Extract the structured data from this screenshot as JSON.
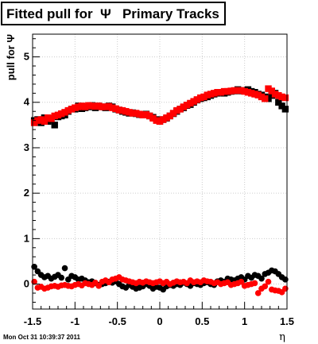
{
  "title": "Fitted pull for  Ψ   Primary Tracks",
  "timestamp": "Mon Oct 31 10:39:37 2011",
  "chart_data": {
    "type": "scatter",
    "title": "Fitted pull for  Ψ   Primary Tracks",
    "xlabel": "η",
    "ylabel": "pull for Ψ",
    "xlim": [
      -1.5,
      1.5
    ],
    "ylim": [
      -0.55,
      5.5
    ],
    "x_ticks": [
      "-1.5",
      "-1",
      "-0.5",
      "0",
      "0.5",
      "1",
      "1.5"
    ],
    "y_ticks": [
      "0",
      "1",
      "2",
      "3",
      "4",
      "5"
    ],
    "grid": true,
    "series": [
      {
        "color": "#000000",
        "marker": "square",
        "x": [
          -1.48,
          -1.44,
          -1.4,
          -1.36,
          -1.32,
          -1.28,
          -1.24,
          -1.2,
          -1.16,
          -1.12,
          -1.08,
          -1.04,
          -1.0,
          -0.96,
          -0.92,
          -0.88,
          -0.84,
          -0.8,
          -0.76,
          -0.72,
          -0.68,
          -0.64,
          -0.6,
          -0.56,
          -0.52,
          -0.48,
          -0.44,
          -0.4,
          -0.36,
          -0.32,
          -0.28,
          -0.24,
          -0.2,
          -0.16,
          -0.12,
          -0.08,
          -0.04,
          0.0,
          0.04,
          0.08,
          0.12,
          0.16,
          0.2,
          0.24,
          0.28,
          0.32,
          0.36,
          0.4,
          0.44,
          0.48,
          0.52,
          0.56,
          0.6,
          0.64,
          0.68,
          0.72,
          0.76,
          0.8,
          0.84,
          0.88,
          0.92,
          0.96,
          1.0,
          1.04,
          1.08,
          1.12,
          1.16,
          1.2,
          1.24,
          1.28,
          1.32,
          1.36,
          1.4,
          1.44,
          1.48
        ],
        "y": [
          3.6,
          3.62,
          3.55,
          3.66,
          3.58,
          3.62,
          3.5,
          3.68,
          3.7,
          3.72,
          3.8,
          3.85,
          3.85,
          3.92,
          3.86,
          3.88,
          3.9,
          3.93,
          3.88,
          3.92,
          3.9,
          3.88,
          3.92,
          3.9,
          3.85,
          3.83,
          3.8,
          3.78,
          3.76,
          3.77,
          3.75,
          3.73,
          3.72,
          3.74,
          3.7,
          3.67,
          3.62,
          3.58,
          3.62,
          3.65,
          3.7,
          3.75,
          3.8,
          3.85,
          3.88,
          3.93,
          3.95,
          4.0,
          4.05,
          4.08,
          4.1,
          4.12,
          4.15,
          4.18,
          4.2,
          4.22,
          4.2,
          4.22,
          4.24,
          4.25,
          4.28,
          4.25,
          4.26,
          4.28,
          4.24,
          4.22,
          4.18,
          4.16,
          4.12,
          4.08,
          4.15,
          4.2,
          4.0,
          3.92,
          3.85
        ]
      },
      {
        "color": "#ff0000",
        "marker": "square",
        "x": [
          -1.48,
          -1.44,
          -1.4,
          -1.36,
          -1.32,
          -1.28,
          -1.24,
          -1.2,
          -1.16,
          -1.12,
          -1.08,
          -1.04,
          -1.0,
          -0.96,
          -0.92,
          -0.88,
          -0.84,
          -0.8,
          -0.76,
          -0.72,
          -0.68,
          -0.64,
          -0.6,
          -0.56,
          -0.52,
          -0.48,
          -0.44,
          -0.4,
          -0.36,
          -0.32,
          -0.28,
          -0.24,
          -0.2,
          -0.16,
          -0.12,
          -0.08,
          -0.04,
          0.0,
          0.04,
          0.08,
          0.12,
          0.16,
          0.2,
          0.24,
          0.28,
          0.32,
          0.36,
          0.4,
          0.44,
          0.48,
          0.52,
          0.56,
          0.6,
          0.64,
          0.68,
          0.72,
          0.76,
          0.8,
          0.84,
          0.88,
          0.92,
          0.96,
          1.0,
          1.04,
          1.08,
          1.12,
          1.16,
          1.2,
          1.24,
          1.28,
          1.32,
          1.36,
          1.4,
          1.44,
          1.48
        ],
        "y": [
          3.55,
          3.6,
          3.62,
          3.58,
          3.66,
          3.64,
          3.7,
          3.72,
          3.75,
          3.78,
          3.82,
          3.85,
          3.88,
          3.9,
          3.92,
          3.9,
          3.93,
          3.92,
          3.91,
          3.92,
          3.9,
          3.9,
          3.91,
          3.88,
          3.86,
          3.83,
          3.82,
          3.8,
          3.78,
          3.76,
          3.76,
          3.74,
          3.72,
          3.73,
          3.7,
          3.65,
          3.6,
          3.58,
          3.62,
          3.66,
          3.7,
          3.76,
          3.82,
          3.85,
          3.9,
          3.94,
          3.98,
          4.02,
          4.06,
          4.1,
          4.12,
          4.16,
          4.18,
          4.2,
          4.22,
          4.22,
          4.24,
          4.24,
          4.25,
          4.26,
          4.26,
          4.26,
          4.24,
          4.22,
          4.2,
          4.18,
          4.16,
          4.12,
          4.08,
          4.3,
          4.25,
          4.18,
          4.15,
          4.12,
          4.1
        ]
      },
      {
        "color": "#000000",
        "marker": "circle",
        "x": [
          -1.48,
          -1.44,
          -1.4,
          -1.36,
          -1.32,
          -1.28,
          -1.24,
          -1.2,
          -1.16,
          -1.12,
          -1.08,
          -1.04,
          -1.0,
          -0.96,
          -0.92,
          -0.88,
          -0.84,
          -0.8,
          -0.76,
          -0.72,
          -0.68,
          -0.64,
          -0.6,
          -0.56,
          -0.52,
          -0.48,
          -0.44,
          -0.4,
          -0.36,
          -0.32,
          -0.28,
          -0.24,
          -0.2,
          -0.16,
          -0.12,
          -0.08,
          -0.04,
          0.0,
          0.04,
          0.08,
          0.12,
          0.16,
          0.2,
          0.24,
          0.28,
          0.32,
          0.36,
          0.4,
          0.44,
          0.48,
          0.52,
          0.56,
          0.6,
          0.64,
          0.68,
          0.72,
          0.76,
          0.8,
          0.84,
          0.88,
          0.92,
          0.96,
          1.0,
          1.04,
          1.08,
          1.12,
          1.16,
          1.2,
          1.24,
          1.28,
          1.32,
          1.36,
          1.4,
          1.44,
          1.48
        ],
        "y": [
          0.38,
          0.28,
          0.2,
          0.15,
          0.18,
          0.12,
          0.16,
          0.2,
          0.14,
          0.35,
          0.1,
          0.18,
          0.15,
          0.1,
          0.12,
          0.08,
          0.04,
          0.06,
          0.02,
          -0.02,
          0.0,
          0.02,
          0.05,
          0.03,
          0.06,
          0.0,
          -0.05,
          -0.08,
          -0.02,
          -0.06,
          -0.1,
          -0.08,
          -0.05,
          0.0,
          -0.04,
          -0.1,
          -0.06,
          -0.08,
          -0.12,
          -0.05,
          -0.02,
          -0.04,
          0.0,
          -0.02,
          0.03,
          0.0,
          -0.04,
          0.02,
          0.0,
          -0.02,
          0.02,
          0.04,
          0.0,
          -0.02,
          0.06,
          0.08,
          0.05,
          0.12,
          0.1,
          0.08,
          0.12,
          0.15,
          0.1,
          0.18,
          0.14,
          0.2,
          0.18,
          0.12,
          0.22,
          0.25,
          0.3,
          0.28,
          0.22,
          0.15,
          0.1
        ]
      },
      {
        "color": "#ff0000",
        "marker": "circle",
        "x": [
          -1.48,
          -1.44,
          -1.4,
          -1.36,
          -1.32,
          -1.28,
          -1.24,
          -1.2,
          -1.16,
          -1.12,
          -1.08,
          -1.04,
          -1.0,
          -0.96,
          -0.92,
          -0.88,
          -0.84,
          -0.8,
          -0.76,
          -0.72,
          -0.68,
          -0.64,
          -0.6,
          -0.56,
          -0.52,
          -0.48,
          -0.44,
          -0.4,
          -0.36,
          -0.32,
          -0.28,
          -0.24,
          -0.2,
          -0.16,
          -0.12,
          -0.08,
          -0.04,
          0.0,
          0.04,
          0.08,
          0.12,
          0.16,
          0.2,
          0.24,
          0.28,
          0.32,
          0.36,
          0.4,
          0.44,
          0.48,
          0.52,
          0.56,
          0.6,
          0.64,
          0.68,
          0.72,
          0.76,
          0.8,
          0.84,
          0.88,
          0.92,
          0.96,
          1.0,
          1.04,
          1.08,
          1.12,
          1.16,
          1.2,
          1.24,
          1.28,
          1.32,
          1.36,
          1.4,
          1.44,
          1.48
        ],
        "y": [
          0.05,
          -0.08,
          -0.06,
          -0.1,
          -0.08,
          -0.05,
          -0.04,
          -0.06,
          -0.03,
          -0.02,
          -0.04,
          -0.05,
          -0.02,
          0.0,
          -0.03,
          0.02,
          0.0,
          -0.02,
          0.03,
          -0.04,
          0.05,
          0.08,
          0.04,
          0.1,
          0.12,
          0.15,
          0.1,
          0.08,
          0.06,
          0.04,
          0.02,
          0.05,
          0.03,
          0.06,
          0.04,
          0.02,
          0.04,
          0.06,
          0.02,
          0.05,
          0.0,
          0.03,
          0.06,
          0.04,
          0.05,
          0.02,
          0.08,
          0.04,
          0.06,
          0.04,
          0.08,
          0.06,
          0.05,
          0.02,
          0.04,
          0.0,
          0.02,
          0.04,
          -0.02,
          0.0,
          0.02,
          0.05,
          -0.04,
          -0.02,
          0.0,
          0.02,
          -0.2,
          -0.1,
          -0.05,
          0.05,
          -0.12,
          -0.14,
          -0.15,
          -0.18,
          -0.1
        ]
      }
    ]
  }
}
